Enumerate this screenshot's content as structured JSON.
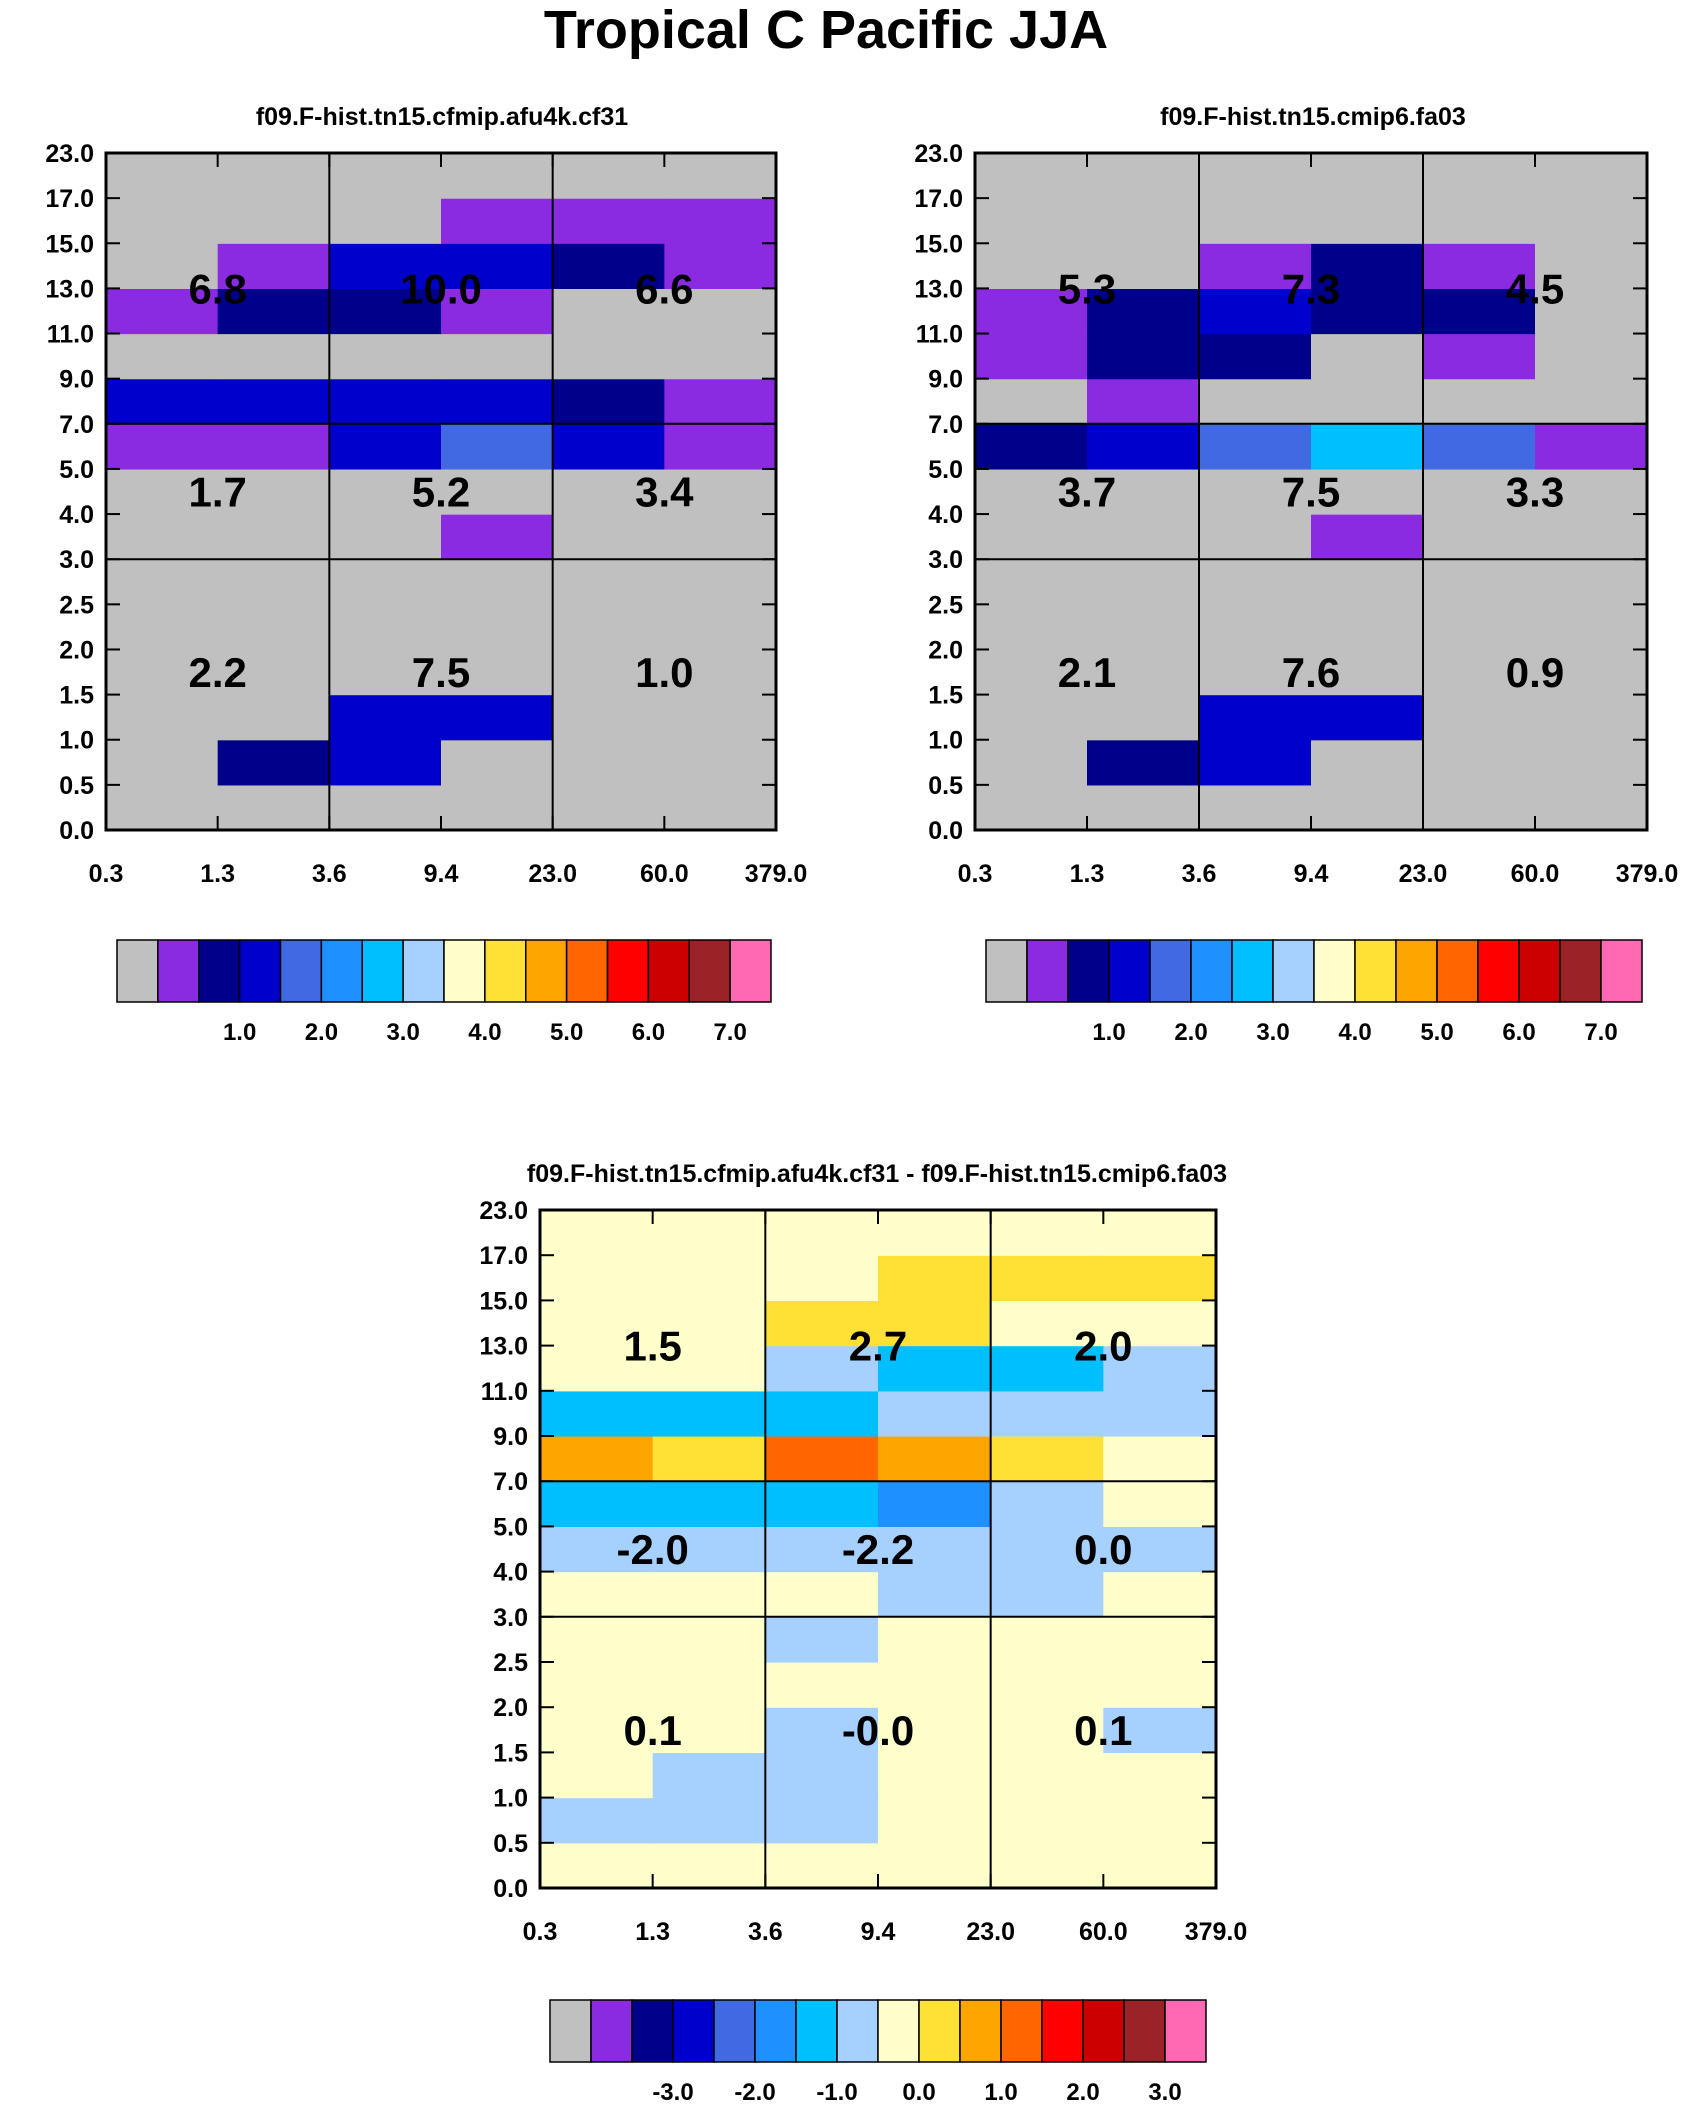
{
  "title": "Tropical C Pacific JJA",
  "colors": {
    "gray": "#c0c0c0",
    "purple": "#8a2be2",
    "navy": "#00008b",
    "blue": "#0000cd",
    "royalblue": "#4169e1",
    "dodgerblue": "#1e90ff",
    "cyan": "#00bfff",
    "lightblue": "#a6d1ff",
    "cream": "#ffffcc",
    "yellow": "#ffe135",
    "gold": "#ffa500",
    "orange": "#ff6600",
    "red": "#ff0000",
    "darkred": "#cc0000",
    "brown": "#9b2226",
    "pink": "#ff69b4"
  },
  "chart_data": [
    {
      "type": "heatmap",
      "id": "left",
      "title": "f09.F-hist.tn15.cfmip.afu4k.cf31",
      "x_ticks": [
        "0.3",
        "1.3",
        "3.6",
        "9.4",
        "23.0",
        "60.0",
        "379.0"
      ],
      "y_ticks": [
        "0.0",
        "0.5",
        "1.0",
        "1.5",
        "2.0",
        "2.5",
        "3.0",
        "4.0",
        "5.0",
        "7.0",
        "9.0",
        "11.0",
        "13.0",
        "15.0",
        "17.0",
        "23.0"
      ],
      "cells_by_level_bottom_to_top": [
        [
          "gray",
          "gray",
          "gray",
          "gray",
          "gray",
          "gray"
        ],
        [
          "gray",
          "navy",
          "blue",
          "gray",
          "gray",
          "gray"
        ],
        [
          "gray",
          "gray",
          "blue",
          "blue",
          "gray",
          "gray"
        ],
        [
          "gray",
          "gray",
          "gray",
          "gray",
          "gray",
          "gray"
        ],
        [
          "gray",
          "gray",
          "gray",
          "gray",
          "gray",
          "gray"
        ],
        [
          "gray",
          "gray",
          "gray",
          "gray",
          "gray",
          "gray"
        ],
        [
          "gray",
          "gray",
          "gray",
          "purple",
          "gray",
          "gray"
        ],
        [
          "gray",
          "gray",
          "gray",
          "gray",
          "gray",
          "gray"
        ],
        [
          "purple",
          "purple",
          "blue",
          "royalblue",
          "blue",
          "purple"
        ],
        [
          "blue",
          "blue",
          "blue",
          "blue",
          "navy",
          "purple"
        ],
        [
          "gray",
          "gray",
          "gray",
          "gray",
          "gray",
          "gray"
        ],
        [
          "purple",
          "navy",
          "navy",
          "purple",
          "gray",
          "gray"
        ],
        [
          "gray",
          "purple",
          "blue",
          "blue",
          "navy",
          "purple"
        ],
        [
          "gray",
          "gray",
          "gray",
          "purple",
          "purple",
          "purple"
        ],
        [
          "gray",
          "gray",
          "gray",
          "gray",
          "gray",
          "gray"
        ]
      ],
      "group_labels_bottom_to_top": [
        [
          "2.2",
          "7.5",
          "1.0"
        ],
        [
          "1.7",
          "5.2",
          "3.4"
        ],
        [
          "6.8",
          "10.0",
          "6.6"
        ]
      ],
      "colorbar": {
        "colors": [
          "gray",
          "purple",
          "navy",
          "blue",
          "royalblue",
          "dodgerblue",
          "cyan",
          "lightblue",
          "cream",
          "yellow",
          "gold",
          "orange",
          "red",
          "darkred",
          "brown",
          "pink"
        ],
        "labels": [
          "1.0",
          "2.0",
          "3.0",
          "4.0",
          "5.0",
          "6.0",
          "7.0"
        ]
      }
    },
    {
      "type": "heatmap",
      "id": "right",
      "title": "f09.F-hist.tn15.cmip6.fa03",
      "x_ticks": [
        "0.3",
        "1.3",
        "3.6",
        "9.4",
        "23.0",
        "60.0",
        "379.0"
      ],
      "y_ticks": [
        "0.0",
        "0.5",
        "1.0",
        "1.5",
        "2.0",
        "2.5",
        "3.0",
        "4.0",
        "5.0",
        "7.0",
        "9.0",
        "11.0",
        "13.0",
        "15.0",
        "17.0",
        "23.0"
      ],
      "cells_by_level_bottom_to_top": [
        [
          "gray",
          "gray",
          "gray",
          "gray",
          "gray",
          "gray"
        ],
        [
          "gray",
          "navy",
          "blue",
          "gray",
          "gray",
          "gray"
        ],
        [
          "gray",
          "gray",
          "blue",
          "blue",
          "gray",
          "gray"
        ],
        [
          "gray",
          "gray",
          "gray",
          "gray",
          "gray",
          "gray"
        ],
        [
          "gray",
          "gray",
          "gray",
          "gray",
          "gray",
          "gray"
        ],
        [
          "gray",
          "gray",
          "gray",
          "gray",
          "gray",
          "gray"
        ],
        [
          "gray",
          "gray",
          "gray",
          "purple",
          "gray",
          "gray"
        ],
        [
          "gray",
          "gray",
          "gray",
          "gray",
          "gray",
          "gray"
        ],
        [
          "navy",
          "blue",
          "royalblue",
          "cyan",
          "royalblue",
          "purple"
        ],
        [
          "gray",
          "purple",
          "gray",
          "gray",
          "gray",
          "gray"
        ],
        [
          "purple",
          "navy",
          "navy",
          "gray",
          "purple",
          "gray"
        ],
        [
          "purple",
          "navy",
          "blue",
          "navy",
          "navy",
          "gray"
        ],
        [
          "gray",
          "gray",
          "purple",
          "navy",
          "purple",
          "gray"
        ],
        [
          "gray",
          "gray",
          "gray",
          "gray",
          "gray",
          "gray"
        ],
        [
          "gray",
          "gray",
          "gray",
          "gray",
          "gray",
          "gray"
        ]
      ],
      "group_labels_bottom_to_top": [
        [
          "2.1",
          "7.6",
          "0.9"
        ],
        [
          "3.7",
          "7.5",
          "3.3"
        ],
        [
          "5.3",
          "7.3",
          "4.5"
        ]
      ],
      "colorbar": {
        "colors": [
          "gray",
          "purple",
          "navy",
          "blue",
          "royalblue",
          "dodgerblue",
          "cyan",
          "lightblue",
          "cream",
          "yellow",
          "gold",
          "orange",
          "red",
          "darkred",
          "brown",
          "pink"
        ],
        "labels": [
          "1.0",
          "2.0",
          "3.0",
          "4.0",
          "5.0",
          "6.0",
          "7.0"
        ]
      }
    },
    {
      "type": "heatmap",
      "id": "diff",
      "title": "f09.F-hist.tn15.cfmip.afu4k.cf31 - f09.F-hist.tn15.cmip6.fa03",
      "x_ticks": [
        "0.3",
        "1.3",
        "3.6",
        "9.4",
        "23.0",
        "60.0",
        "379.0"
      ],
      "y_ticks": [
        "0.0",
        "0.5",
        "1.0",
        "1.5",
        "2.0",
        "2.5",
        "3.0",
        "4.0",
        "5.0",
        "7.0",
        "9.0",
        "11.0",
        "13.0",
        "15.0",
        "17.0",
        "23.0"
      ],
      "cells_by_level_bottom_to_top": [
        [
          "cream",
          "cream",
          "cream",
          "cream",
          "cream",
          "cream"
        ],
        [
          "lightblue",
          "lightblue",
          "lightblue",
          "cream",
          "cream",
          "cream"
        ],
        [
          "cream",
          "lightblue",
          "lightblue",
          "cream",
          "cream",
          "cream"
        ],
        [
          "cream",
          "cream",
          "lightblue",
          "cream",
          "cream",
          "lightblue"
        ],
        [
          "cream",
          "cream",
          "cream",
          "cream",
          "cream",
          "cream"
        ],
        [
          "cream",
          "cream",
          "lightblue",
          "cream",
          "cream",
          "cream"
        ],
        [
          "cream",
          "cream",
          "cream",
          "lightblue",
          "lightblue",
          "cream"
        ],
        [
          "lightblue",
          "lightblue",
          "lightblue",
          "lightblue",
          "lightblue",
          "lightblue"
        ],
        [
          "cyan",
          "cyan",
          "cyan",
          "dodgerblue",
          "lightblue",
          "cream"
        ],
        [
          "gold",
          "yellow",
          "orange",
          "gold",
          "yellow",
          "cream"
        ],
        [
          "cyan",
          "cyan",
          "cyan",
          "lightblue",
          "lightblue",
          "lightblue"
        ],
        [
          "cream",
          "cream",
          "lightblue",
          "cyan",
          "cyan",
          "lightblue"
        ],
        [
          "cream",
          "cream",
          "yellow",
          "yellow",
          "cream",
          "cream"
        ],
        [
          "cream",
          "cream",
          "cream",
          "yellow",
          "yellow",
          "yellow"
        ],
        [
          "cream",
          "cream",
          "cream",
          "cream",
          "cream",
          "cream"
        ]
      ],
      "group_labels_bottom_to_top": [
        [
          "0.1",
          "-0.0",
          "0.1"
        ],
        [
          "-2.0",
          "-2.2",
          "0.0"
        ],
        [
          "1.5",
          "2.7",
          "2.0"
        ]
      ],
      "colorbar": {
        "colors": [
          "gray",
          "purple",
          "navy",
          "blue",
          "royalblue",
          "dodgerblue",
          "cyan",
          "lightblue",
          "cream",
          "yellow",
          "gold",
          "orange",
          "red",
          "darkred",
          "brown",
          "pink"
        ],
        "labels": [
          "-3.0",
          "-2.0",
          "-1.0",
          "0.0",
          "1.0",
          "2.0",
          "3.0"
        ]
      }
    }
  ]
}
